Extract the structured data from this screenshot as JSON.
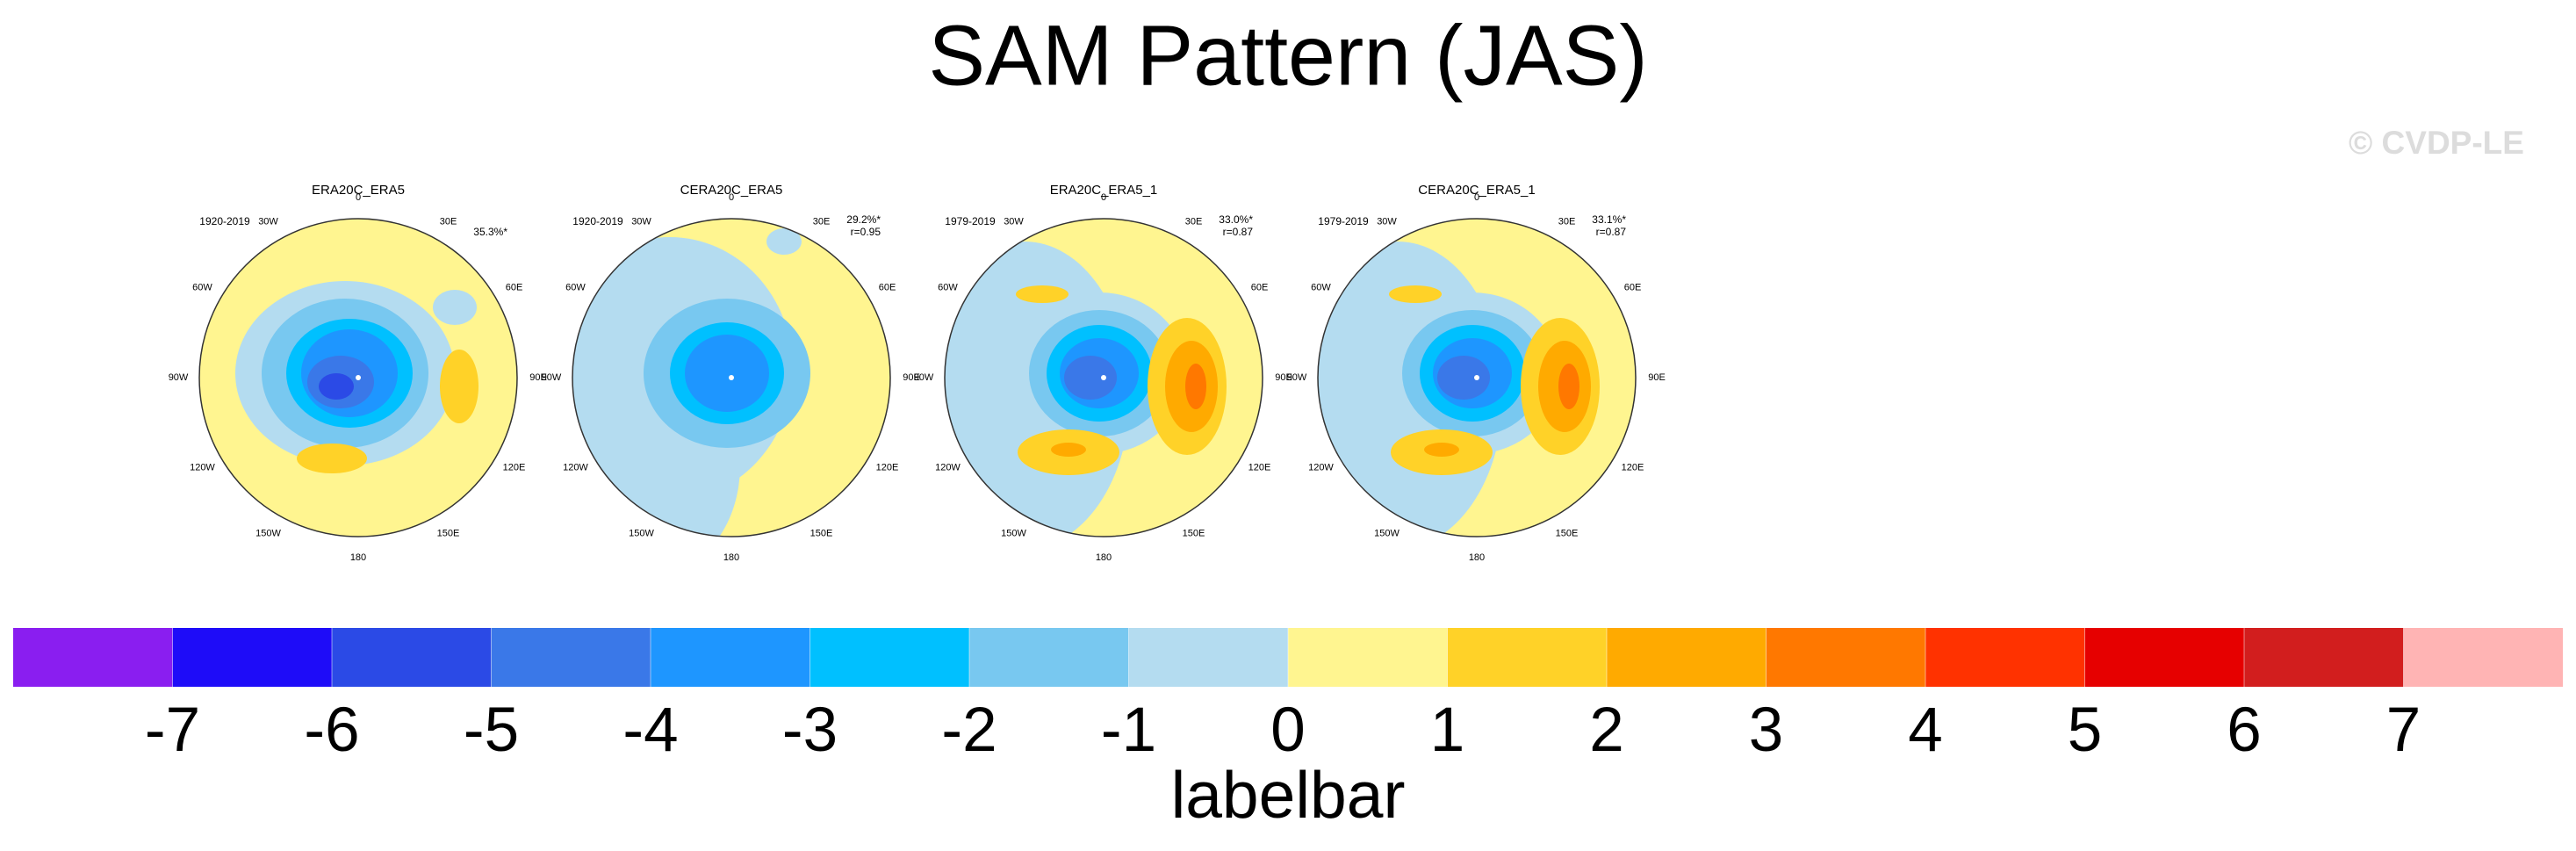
{
  "title": "SAM Pattern (JAS)",
  "watermark": "© CVDP-LE",
  "panels": [
    {
      "title": "ERA20C_ERA5",
      "period": "1920-2019",
      "pct": "35.3%*"
    },
    {
      "title": "CERA20C_ERA5",
      "period": "1920-2019",
      "pct": "29.2%*",
      "r": "r=0.95"
    },
    {
      "title": "ERA20C_ERA5_1",
      "period": "1979-2019",
      "pct": "33.0%*",
      "r": "r=0.87"
    },
    {
      "title": "CERA20C_ERA5_1",
      "period": "1979-2019",
      "pct": "33.1%*",
      "r": "r=0.87"
    }
  ],
  "lon_labels": [
    "0",
    "30E",
    "60E",
    "90E",
    "120E",
    "150E",
    "180",
    "150W",
    "120W",
    "90W",
    "60W",
    "30W"
  ],
  "colorbar": {
    "colors": [
      "#8a1ef0",
      "#1e0cf8",
      "#2b4ae6",
      "#3a78e8",
      "#1e96ff",
      "#00c0ff",
      "#78c8f0",
      "#b4dcf0",
      "#fff590",
      "#ffd228",
      "#ffaa00",
      "#ff7800",
      "#ff3200",
      "#e60000",
      "#d21e1e",
      "#ffb4b4"
    ],
    "ticks": [
      -7,
      -6,
      -5,
      -4,
      -3,
      -2,
      -1,
      0,
      1,
      2,
      3,
      4,
      5,
      6,
      7
    ],
    "label": "labelbar"
  }
}
